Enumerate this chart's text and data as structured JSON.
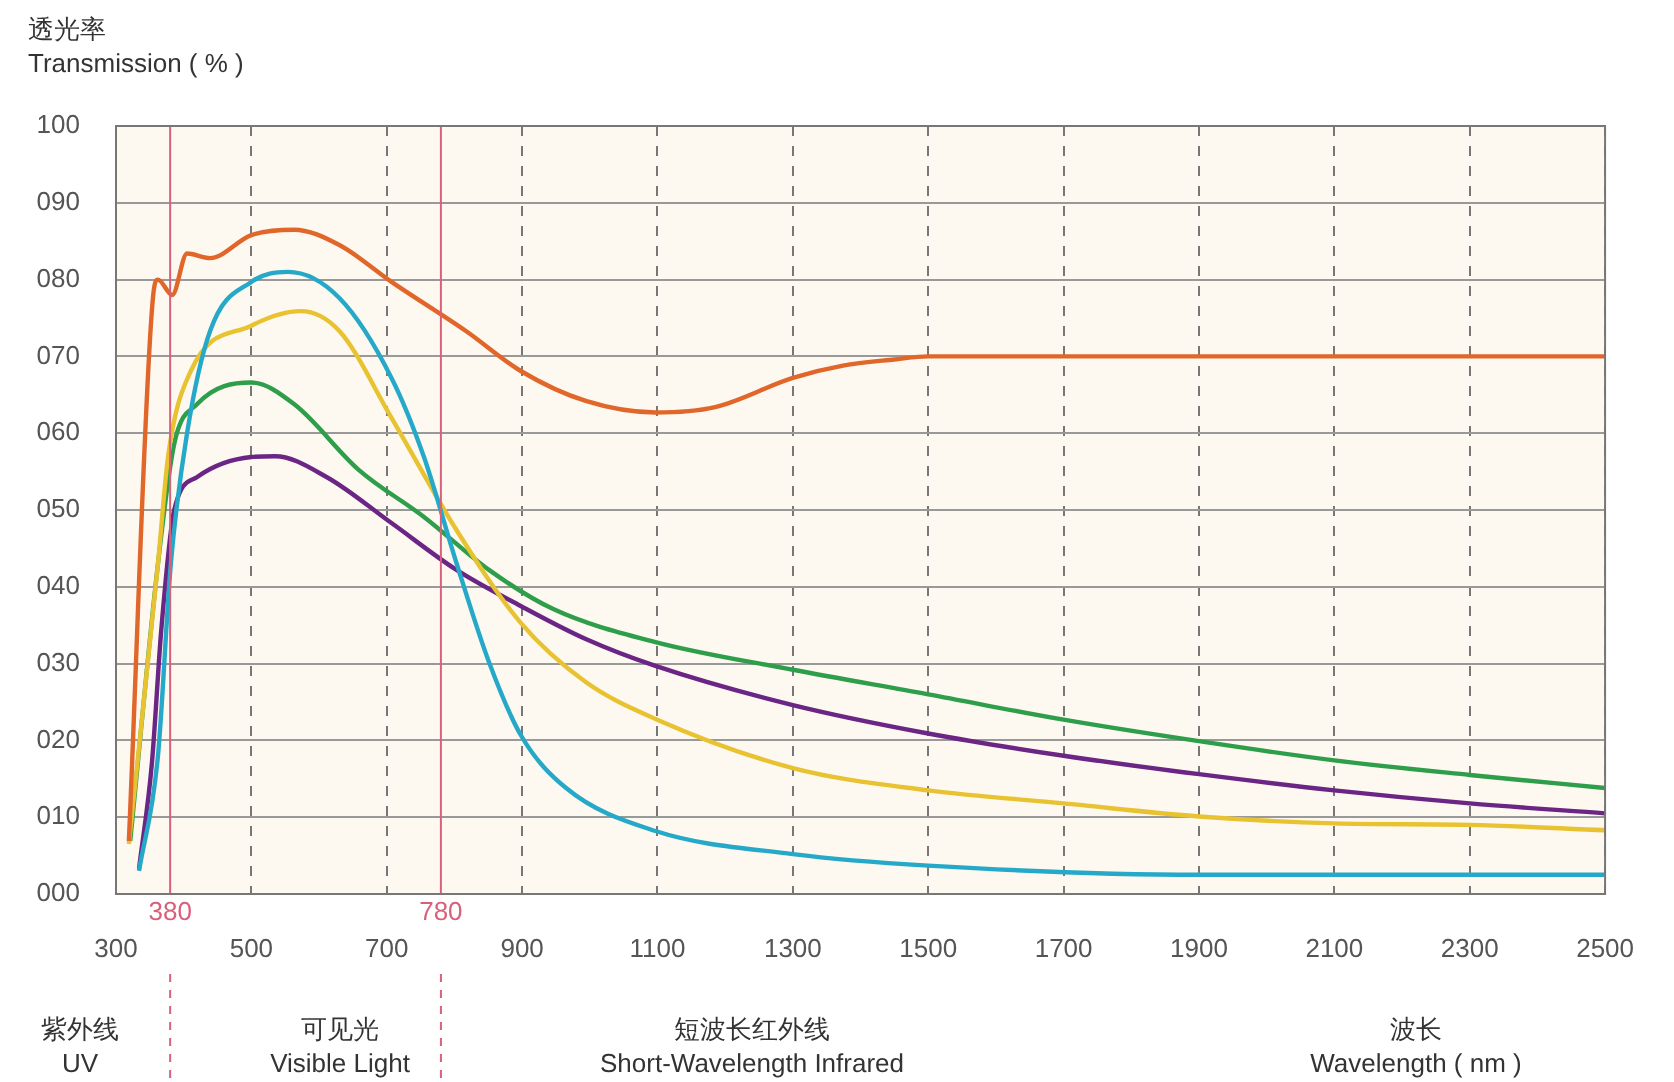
{
  "chart_data": {
    "type": "line",
    "ylabel": "透光率\nTransmission ( % )",
    "xlabel": "波长\nWavelength ( nm )",
    "annotations": [
      "紫外线\nUV",
      "可见光\nVisible Light",
      "短波长红外线\nShort-Wavelength Infrared"
    ],
    "xlim": [
      300,
      2500
    ],
    "xticks": [
      300,
      500,
      700,
      900,
      1100,
      1300,
      1500,
      1700,
      1900,
      2100,
      2300,
      2500
    ],
    "ylim": [
      0,
      100
    ],
    "yticks": [
      {
        "value": 0,
        "label": "000"
      },
      {
        "value": 10,
        "label": "010"
      },
      {
        "value": 20,
        "label": "020"
      },
      {
        "value": 30,
        "label": "030"
      },
      {
        "value": 40,
        "label": "040"
      },
      {
        "value": 50,
        "label": "050"
      },
      {
        "value": 60,
        "label": "060"
      },
      {
        "value": 70,
        "label": "070"
      },
      {
        "value": 80,
        "label": "080"
      },
      {
        "value": 90,
        "label": "090"
      },
      100
    ],
    "ref_lines": [
      {
        "axis": "x",
        "value": 380,
        "label": "380",
        "color": "#d9607a"
      },
      {
        "axis": "x",
        "value": 780,
        "label": "780",
        "color": "#d9607a"
      }
    ],
    "grid": true,
    "legend": false,
    "marker": "none",
    "line_style": "solid",
    "series": [
      {
        "color": "#e0662a",
        "x": [
          319,
          355,
          362,
          383,
          405,
          439,
          500,
          563,
          630,
          707,
          817,
          898,
          994,
          1097,
          1185,
          1300,
          1374,
          1450,
          1500,
          1700,
          2000,
          2300,
          2500
        ],
        "values": [
          6.9,
          78,
          80,
          78,
          83.4,
          82.8,
          85.8,
          86.5,
          84.5,
          79.7,
          73.3,
          68.1,
          64.2,
          62.7,
          63.4,
          67.2,
          68.8,
          69.6,
          70,
          70,
          70,
          70,
          70
        ]
      },
      {
        "color": "#26a9c8",
        "x": [
          334,
          362,
          381,
          405,
          439,
          500,
          554,
          630,
          707,
          755,
          803,
          851,
          898,
          965,
          1097,
          1300,
          1500,
          1900,
          2500
        ],
        "values": [
          3,
          18,
          43,
          60,
          73.3,
          79.7,
          81,
          77.6,
          67.2,
          56.9,
          43.1,
          30.2,
          20.7,
          13.8,
          8.2,
          5.2,
          3.7,
          2.5,
          2.5
        ]
      },
      {
        "color": "#e8c230",
        "x": [
          319,
          362,
          377,
          410,
          500,
          573,
          630,
          707,
          803,
          898,
          994,
          1097,
          1300,
          1500,
          1700,
          1900,
          2100,
          2300,
          2500
        ],
        "values": [
          6.5,
          43,
          57,
          68,
          74,
          75.9,
          73.3,
          62,
          47.4,
          35.3,
          27.6,
          22.8,
          16.4,
          13.5,
          11.8,
          10.1,
          9.2,
          9,
          8.3
        ]
      },
      {
        "color": "#2e9e4a",
        "x": [
          321,
          362,
          386,
          420,
          500,
          563,
          659,
          755,
          851,
          946,
          1097,
          1300,
          1500,
          1700,
          1900,
          2100,
          2300,
          2500
        ],
        "values": [
          6.9,
          43,
          58.6,
          63.8,
          66.6,
          63.8,
          55.2,
          49.1,
          42.2,
          37.1,
          32.8,
          29.2,
          26,
          22.7,
          19.9,
          17.4,
          15.5,
          13.8
        ]
      },
      {
        "color": "#6a2585",
        "x": [
          334,
          353,
          367,
          386,
          420,
          500,
          535,
          611,
          707,
          803,
          898,
          994,
          1097,
          1300,
          1500,
          1700,
          1900,
          2100,
          2300,
          2500
        ],
        "values": [
          3.3,
          17,
          34.5,
          50,
          54.3,
          56.9,
          57,
          54.3,
          48.3,
          42.2,
          37.5,
          33.2,
          29.7,
          24.6,
          20.9,
          18,
          15.6,
          13.5,
          11.8,
          10.5
        ]
      }
    ]
  }
}
